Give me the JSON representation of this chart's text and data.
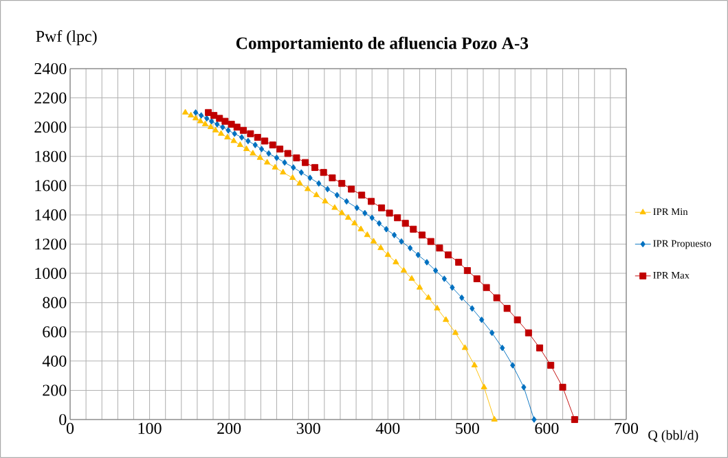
{
  "chart_data": {
    "type": "line",
    "title": "**Comportamiento de afluencia Pozo A-3**",
    "xlabel": "Q (bbl/d)",
    "ylabel": "Pwf (lpc)",
    "xlim": [
      0,
      700
    ],
    "ylim": [
      0,
      2400
    ],
    "xticks": [
      0,
      {
        "value": 20,
        "label": null
      },
      {
        "value": 40,
        "label": null
      },
      {
        "value": 60,
        "label": null
      },
      {
        "value": 80,
        "label": null
      },
      100,
      {
        "value": 120,
        "label": null
      },
      {
        "value": 140,
        "label": null
      },
      {
        "value": 160,
        "label": null
      },
      {
        "value": 180,
        "label": null
      },
      200,
      {
        "value": 220,
        "label": null
      },
      {
        "value": 240,
        "label": null
      },
      {
        "value": 260,
        "label": null
      },
      {
        "value": 280,
        "label": null
      },
      300,
      {
        "value": 320,
        "label": null
      },
      {
        "value": 340,
        "label": null
      },
      {
        "value": 360,
        "label": null
      },
      {
        "value": 380,
        "label": null
      },
      400,
      {
        "value": 420,
        "label": null
      },
      {
        "value": 440,
        "label": null
      },
      {
        "value": 460,
        "label": null
      },
      {
        "value": 480,
        "label": null
      },
      500,
      {
        "value": 520,
        "label": null
      },
      {
        "value": 540,
        "label": null
      },
      {
        "value": 560,
        "label": null
      },
      {
        "value": 580,
        "label": null
      },
      600,
      {
        "value": 620,
        "label": null
      },
      {
        "value": 640,
        "label": null
      },
      {
        "value": 660,
        "label": null
      },
      {
        "value": 680,
        "label": null
      },
      700
    ],
    "yticks": [
      0,
      200,
      400,
      600,
      800,
      1000,
      1200,
      1400,
      1600,
      1800,
      2000,
      2200,
      2400
    ],
    "grid": true,
    "legend": "right",
    "series": [
      {
        "name": "IPR Min",
        "color": "#ffc000",
        "marker": "triangle",
        "x": [
          145,
          152,
          158,
          164,
          170,
          177,
          183,
          190,
          198,
          206,
          214,
          222,
          230,
          239,
          248,
          258,
          268,
          280,
          289,
          299,
          310,
          321,
          333,
          342,
          350,
          358,
          366,
          374,
          382,
          391,
          400,
          410,
          420,
          430,
          440,
          451,
          462,
          473,
          485,
          497,
          509,
          521,
          534
        ],
        "values": [
          2100,
          2080,
          2060,
          2040,
          2020,
          2000,
          1978,
          1955,
          1930,
          1905,
          1878,
          1850,
          1820,
          1790,
          1758,
          1724,
          1690,
          1653,
          1615,
          1576,
          1535,
          1492,
          1448,
          1412,
          1380,
          1342,
          1302,
          1262,
          1218,
          1173,
          1126,
          1076,
          1019,
          963,
          903,
          833,
          760,
          682,
          593,
          490,
          371,
          221,
          0
        ]
      },
      {
        "name": "IPR Propuesto",
        "color": "#0070c0",
        "marker": "diamond",
        "x": [
          158,
          165,
          172,
          178,
          185,
          192,
          199,
          207,
          216,
          224,
          233,
          241,
          250,
          260,
          270,
          281,
          291,
          302,
          313,
          324,
          336,
          348,
          361,
          371,
          380,
          389,
          398,
          408,
          417,
          428,
          438,
          449,
          460,
          471,
          481,
          493,
          506,
          518,
          531,
          544,
          557,
          571,
          584
        ],
        "values": [
          2100,
          2080,
          2060,
          2040,
          2020,
          2000,
          1978,
          1955,
          1930,
          1905,
          1878,
          1850,
          1820,
          1790,
          1758,
          1724,
          1690,
          1653,
          1615,
          1576,
          1535,
          1492,
          1448,
          1412,
          1380,
          1342,
          1302,
          1262,
          1218,
          1173,
          1126,
          1076,
          1019,
          963,
          903,
          833,
          760,
          682,
          593,
          490,
          371,
          221,
          0
        ]
      },
      {
        "name": "IPR Max",
        "color": "#c00000",
        "marker": "square",
        "x": [
          174,
          181,
          188,
          195,
          203,
          210,
          218,
          227,
          236,
          245,
          255,
          264,
          274,
          285,
          296,
          308,
          319,
          330,
          342,
          354,
          367,
          379,
          392,
          402,
          412,
          422,
          432,
          443,
          454,
          465,
          476,
          489,
          500,
          512,
          524,
          537,
          550,
          563,
          577,
          591,
          605,
          620,
          635
        ],
        "values": [
          2100,
          2080,
          2060,
          2040,
          2020,
          2000,
          1978,
          1955,
          1930,
          1905,
          1878,
          1850,
          1820,
          1790,
          1758,
          1724,
          1690,
          1653,
          1615,
          1576,
          1535,
          1492,
          1448,
          1412,
          1380,
          1342,
          1302,
          1262,
          1218,
          1173,
          1126,
          1076,
          1019,
          963,
          903,
          833,
          760,
          682,
          593,
          490,
          371,
          221,
          0
        ]
      }
    ]
  }
}
